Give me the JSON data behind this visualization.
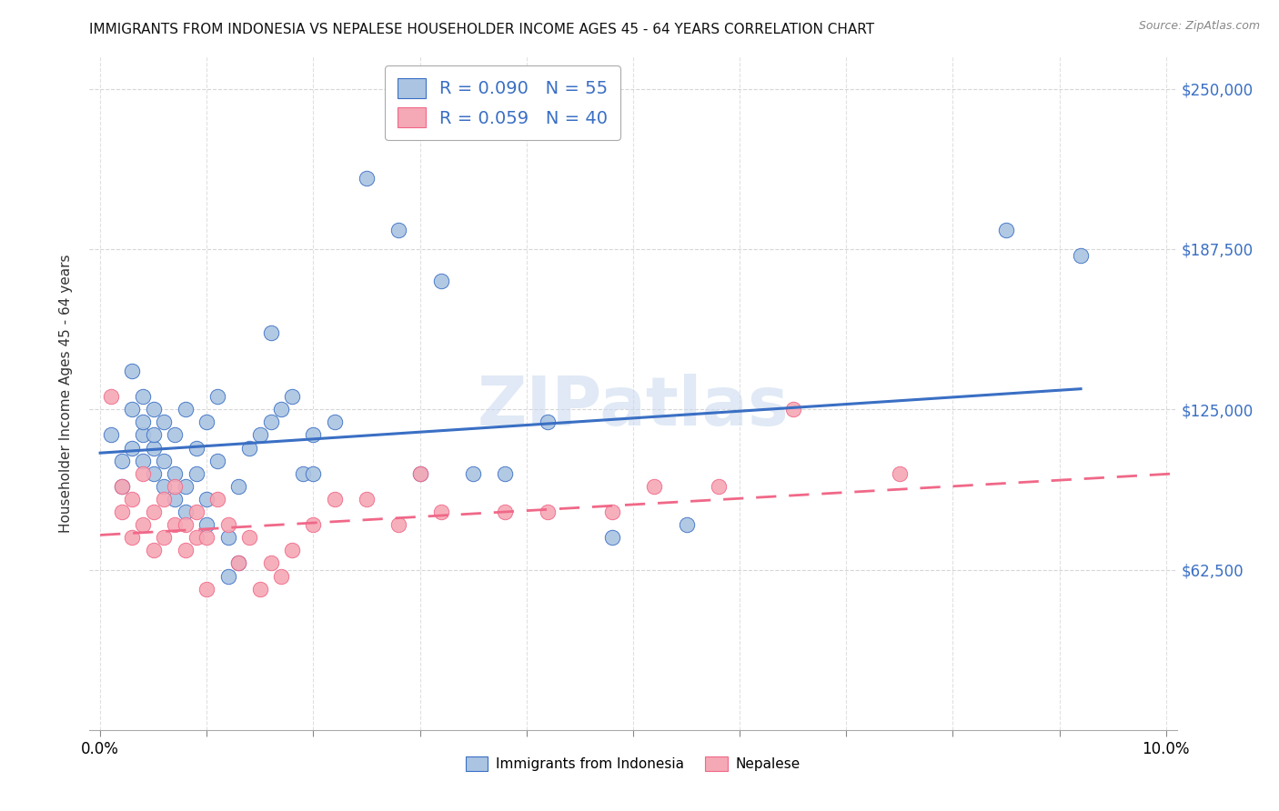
{
  "title": "IMMIGRANTS FROM INDONESIA VS NEPALESE HOUSEHOLDER INCOME AGES 45 - 64 YEARS CORRELATION CHART",
  "source": "Source: ZipAtlas.com",
  "ylabel": "Householder Income Ages 45 - 64 years",
  "ytick_labels": [
    "$62,500",
    "$125,000",
    "$187,500",
    "$250,000"
  ],
  "ytick_vals": [
    62500,
    125000,
    187500,
    250000
  ],
  "xlim": [
    -0.001,
    0.101
  ],
  "ylim": [
    0,
    262500
  ],
  "legend_indonesia": "R = 0.090   N = 55",
  "legend_nepalese": "R = 0.059   N = 40",
  "legend_label1": "Immigrants from Indonesia",
  "legend_label2": "Nepalese",
  "color_indonesia": "#aac4e2",
  "color_nepalese": "#f5a8b5",
  "color_line_indonesia": "#3a6fc4",
  "color_line_nepalese": "#f06888",
  "watermark": "ZIPatlas",
  "indonesia_scatter_x": [
    0.001,
    0.002,
    0.002,
    0.003,
    0.003,
    0.003,
    0.004,
    0.004,
    0.004,
    0.004,
    0.005,
    0.005,
    0.005,
    0.005,
    0.006,
    0.006,
    0.006,
    0.007,
    0.007,
    0.007,
    0.008,
    0.008,
    0.008,
    0.009,
    0.009,
    0.01,
    0.01,
    0.01,
    0.011,
    0.011,
    0.012,
    0.012,
    0.013,
    0.013,
    0.014,
    0.015,
    0.016,
    0.016,
    0.017,
    0.018,
    0.019,
    0.02,
    0.02,
    0.022,
    0.025,
    0.028,
    0.03,
    0.032,
    0.035,
    0.038,
    0.042,
    0.048,
    0.055,
    0.085,
    0.092
  ],
  "indonesia_scatter_y": [
    115000,
    95000,
    105000,
    110000,
    125000,
    140000,
    105000,
    115000,
    120000,
    130000,
    100000,
    110000,
    115000,
    125000,
    95000,
    105000,
    120000,
    90000,
    100000,
    115000,
    85000,
    95000,
    125000,
    100000,
    110000,
    80000,
    90000,
    120000,
    105000,
    130000,
    60000,
    75000,
    65000,
    95000,
    110000,
    115000,
    155000,
    120000,
    125000,
    130000,
    100000,
    100000,
    115000,
    120000,
    215000,
    195000,
    100000,
    175000,
    100000,
    100000,
    120000,
    75000,
    80000,
    195000,
    185000
  ],
  "nepalese_scatter_x": [
    0.001,
    0.002,
    0.002,
    0.003,
    0.003,
    0.004,
    0.004,
    0.005,
    0.005,
    0.006,
    0.006,
    0.007,
    0.007,
    0.008,
    0.008,
    0.009,
    0.009,
    0.01,
    0.01,
    0.011,
    0.012,
    0.013,
    0.014,
    0.015,
    0.016,
    0.017,
    0.018,
    0.02,
    0.022,
    0.025,
    0.028,
    0.03,
    0.032,
    0.038,
    0.042,
    0.048,
    0.052,
    0.058,
    0.065,
    0.075
  ],
  "nepalese_scatter_y": [
    130000,
    85000,
    95000,
    75000,
    90000,
    80000,
    100000,
    70000,
    85000,
    75000,
    90000,
    80000,
    95000,
    70000,
    80000,
    85000,
    75000,
    55000,
    75000,
    90000,
    80000,
    65000,
    75000,
    55000,
    65000,
    60000,
    70000,
    80000,
    90000,
    90000,
    80000,
    100000,
    85000,
    85000,
    85000,
    85000,
    95000,
    95000,
    125000,
    100000
  ],
  "indonesia_trendline_x": [
    0.0,
    0.092
  ],
  "indonesia_trendline_y": [
    108000,
    133000
  ],
  "nepalese_trendline_x": [
    0.0,
    0.101
  ],
  "nepalese_trendline_y": [
    76000,
    100000
  ],
  "xtick_positions": [
    0.0,
    0.01,
    0.02,
    0.03,
    0.04,
    0.05,
    0.06,
    0.07,
    0.08,
    0.09,
    0.1
  ],
  "xtick_edge_labels": {
    "0": "0.0%",
    "10": "10.0%"
  }
}
